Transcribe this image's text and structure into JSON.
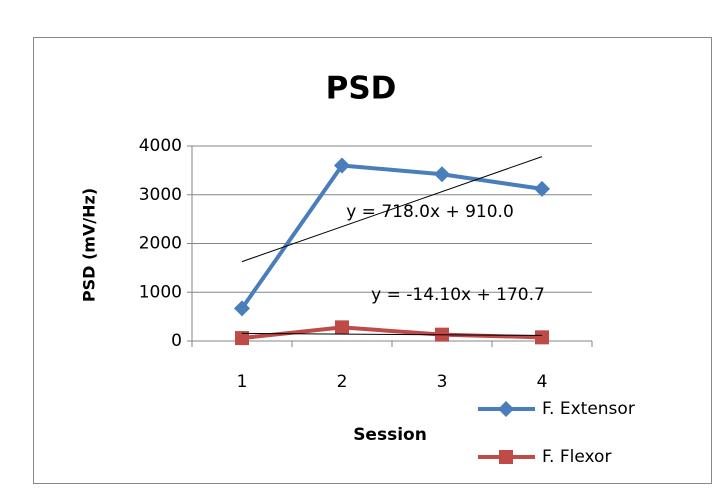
{
  "chart_data": {
    "type": "line",
    "title": "PSD",
    "x_label": "Session",
    "y_label": "PSD (mV/Hz)",
    "categories": [
      "1",
      "2",
      "3",
      "4"
    ],
    "ylim": [
      0,
      4000
    ],
    "yticks": [
      0,
      1000,
      2000,
      3000,
      4000
    ],
    "grid": true,
    "legend": "bottom-right",
    "series": [
      {
        "name": "F. Extensor",
        "color": "#4a7ebb",
        "marker": "diamond",
        "values": [
          670,
          3600,
          3420,
          3120
        ],
        "trendline": {
          "label": "y = 718.0x + 910.0",
          "slope": 718.0,
          "intercept": 910.0
        }
      },
      {
        "name": "F. Flexor",
        "color": "#be4b48",
        "marker": "square",
        "values": [
          60,
          280,
          130,
          75
        ],
        "trendline": {
          "label": "y = -14.10x + 170.7",
          "slope": -14.1,
          "intercept": 170.7
        }
      }
    ]
  }
}
